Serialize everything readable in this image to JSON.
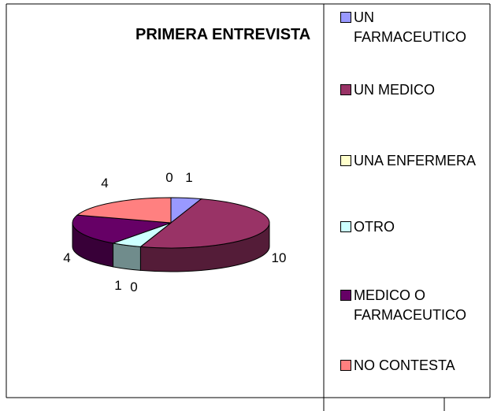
{
  "chart_data": {
    "type": "pie3d",
    "title": "PRIMERA ENTREVISTA",
    "categories": [
      "UN FARMACEUTICO",
      "UN MEDICO",
      "UNA ENFERMERA",
      "OTRO",
      "MEDICO O FARMACEUTICO",
      "NO CONTESTA",
      null
    ],
    "values": [
      1,
      10,
      0,
      1,
      4,
      4,
      0
    ],
    "colors": [
      "#9999ff",
      "#993366",
      "#ffffcc",
      "#ccffff",
      "#660066",
      "#ff8080",
      "#0066cc"
    ],
    "legend": "right"
  }
}
